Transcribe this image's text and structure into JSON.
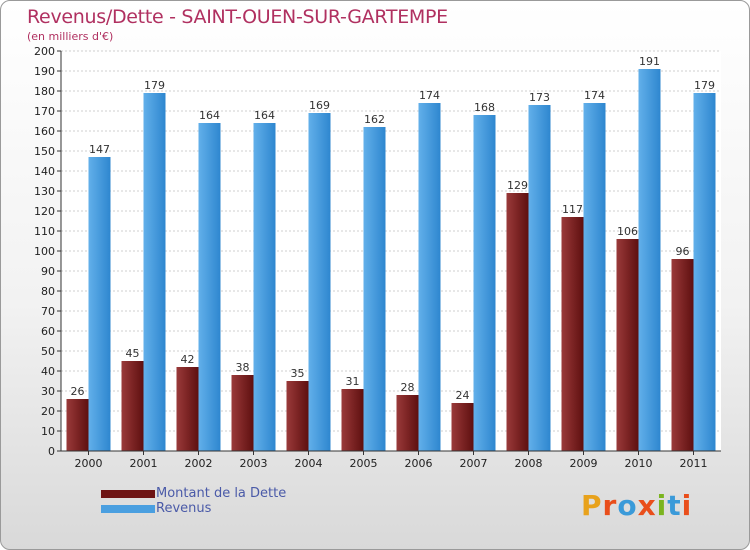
{
  "title": "Revenus/Dette - SAINT-OUEN-SUR-GARTEMPE",
  "subtitle": "(en milliers d'€)",
  "logo": {
    "text": [
      "P",
      "r",
      "o",
      "x",
      "i",
      "t",
      "i"
    ],
    "colors": [
      "#e8a21c",
      "#e94e1b",
      "#3a9ad9",
      "#e94e1b",
      "#7bb41f",
      "#3a9ad9",
      "#e94e1b"
    ]
  },
  "chart_data": {
    "type": "bar",
    "title": "Revenus/Dette - SAINT-OUEN-SUR-GARTEMPE",
    "subtitle": "(en milliers d'€)",
    "categories": [
      "2000",
      "2001",
      "2002",
      "2003",
      "2004",
      "2005",
      "2006",
      "2007",
      "2008",
      "2009",
      "2010",
      "2011"
    ],
    "series": [
      {
        "name": "Montant de la Dette",
        "color": "#7a1a1a",
        "values": [
          26,
          45,
          42,
          38,
          35,
          31,
          28,
          24,
          129,
          117,
          106,
          96
        ]
      },
      {
        "name": "Revenus",
        "color": "#4a9fe0",
        "values": [
          147,
          179,
          164,
          164,
          169,
          162,
          174,
          168,
          173,
          174,
          191,
          179
        ]
      }
    ],
    "ylim": [
      0,
      200
    ],
    "yticks": [
      0,
      10,
      20,
      30,
      40,
      50,
      60,
      70,
      80,
      90,
      100,
      110,
      120,
      130,
      140,
      150,
      160,
      170,
      180,
      190,
      200
    ],
    "grid": true,
    "legend": "bottom-left"
  }
}
